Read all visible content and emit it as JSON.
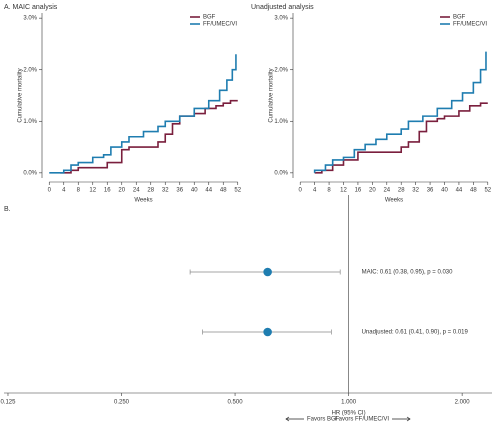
{
  "chart_data": [
    {
      "type": "line",
      "title": "A. MAIC analysis",
      "ylabel": "Cumulative mortality",
      "xlabel": "Weeks",
      "xlim": [
        -2,
        54
      ],
      "xticks": [
        0,
        4,
        8,
        12,
        16,
        20,
        24,
        28,
        32,
        36,
        40,
        44,
        48,
        52
      ],
      "ylim": [
        -0.1,
        3.1
      ],
      "yticks": [
        {
          "value": 0,
          "label": "0.0%"
        },
        {
          "value": 1,
          "label": "1.0%"
        },
        {
          "value": 2,
          "label": "2.0%"
        },
        {
          "value": 3,
          "label": "3.0%"
        }
      ],
      "legend": "upper right",
      "series": [
        {
          "name": "BGF",
          "color": "#7a1f3d",
          "x": [
            3,
            6,
            6,
            8,
            8,
            16,
            16,
            20,
            20,
            22,
            22,
            30,
            30,
            32,
            32,
            34,
            34,
            36,
            36,
            40,
            40,
            43,
            43,
            46,
            46,
            48,
            48,
            50,
            50,
            52
          ],
          "values": [
            0,
            0,
            0.05,
            0.05,
            0.1,
            0.1,
            0.2,
            0.2,
            0.45,
            0.45,
            0.5,
            0.5,
            0.6,
            0.6,
            0.75,
            0.75,
            0.95,
            0.95,
            1.1,
            1.1,
            1.15,
            1.15,
            1.25,
            1.25,
            1.3,
            1.3,
            1.35,
            1.35,
            1.4,
            1.4
          ]
        },
        {
          "name": "FF/UMEC/VI",
          "color": "#1f7db0",
          "x": [
            0,
            4,
            4,
            6,
            6,
            8,
            8,
            12,
            12,
            15,
            15,
            17,
            17,
            20,
            20,
            22,
            22,
            26,
            26,
            30,
            30,
            32,
            32,
            36,
            36,
            40,
            40,
            44,
            44,
            47,
            47,
            49,
            49,
            50.5,
            50.5,
            51.5,
            51.5
          ],
          "values": [
            0,
            0,
            0.05,
            0.05,
            0.15,
            0.15,
            0.2,
            0.2,
            0.3,
            0.3,
            0.35,
            0.35,
            0.5,
            0.5,
            0.6,
            0.6,
            0.7,
            0.7,
            0.8,
            0.8,
            0.9,
            0.9,
            1.0,
            1.0,
            1.1,
            1.1,
            1.25,
            1.25,
            1.4,
            1.4,
            1.6,
            1.6,
            1.8,
            1.8,
            2.0,
            2.0,
            2.3
          ]
        }
      ]
    },
    {
      "type": "line",
      "title": "Unadjusted analysis",
      "ylabel": "Cumulative mortality",
      "xlabel": "Weeks",
      "xlim": [
        -2,
        54
      ],
      "xticks": [
        0,
        4,
        8,
        12,
        16,
        20,
        24,
        28,
        32,
        36,
        40,
        44,
        48,
        52
      ],
      "ylim": [
        -0.1,
        3.1
      ],
      "yticks": [
        {
          "value": 0,
          "label": "0.0%"
        },
        {
          "value": 1,
          "label": "1.0%"
        },
        {
          "value": 2,
          "label": "2.0%"
        },
        {
          "value": 3,
          "label": "3.0%"
        }
      ],
      "legend": "upper right",
      "series": [
        {
          "name": "BGF",
          "color": "#7a1f3d",
          "x": [
            4,
            6,
            6,
            9,
            9,
            12,
            12,
            16,
            16,
            28,
            28,
            30,
            30,
            33,
            33,
            35,
            35,
            38,
            38,
            40,
            40,
            44,
            44,
            47,
            47,
            50,
            50,
            52
          ],
          "values": [
            0,
            0,
            0.05,
            0.05,
            0.15,
            0.15,
            0.25,
            0.25,
            0.4,
            0.4,
            0.5,
            0.5,
            0.6,
            0.6,
            0.8,
            0.8,
            1.0,
            1.0,
            1.05,
            1.05,
            1.1,
            1.1,
            1.2,
            1.2,
            1.3,
            1.3,
            1.35,
            1.35
          ]
        },
        {
          "name": "FF/UMEC/VI",
          "color": "#1f7db0",
          "x": [
            4,
            4,
            7,
            7,
            9,
            9,
            12,
            12,
            15,
            15,
            18,
            18,
            21,
            21,
            24,
            24,
            28,
            28,
            30,
            30,
            34,
            34,
            38,
            38,
            42,
            42,
            45,
            45,
            48,
            48,
            50,
            50,
            51.5,
            51.5
          ],
          "values": [
            0,
            0.05,
            0.05,
            0.15,
            0.15,
            0.25,
            0.25,
            0.3,
            0.3,
            0.45,
            0.45,
            0.55,
            0.55,
            0.65,
            0.65,
            0.75,
            0.75,
            0.85,
            0.85,
            1.0,
            1.0,
            1.1,
            1.1,
            1.25,
            1.25,
            1.4,
            1.4,
            1.55,
            1.55,
            1.75,
            1.75,
            2.0,
            2.0,
            2.35
          ]
        }
      ]
    },
    {
      "type": "forest",
      "title": "B.",
      "xlabel": "HR (95% CI)",
      "log_x": true,
      "xlim": [
        0.122,
        2.4
      ],
      "xticks": [
        0.125,
        {
          "value": 0.25,
          "label": "0.250"
        },
        {
          "value": 0.5,
          "label": "0.500"
        },
        {
          "value": 1,
          "label": "1.000"
        },
        {
          "value": 2,
          "label": "2.000"
        }
      ],
      "reference": 1,
      "labels": [
        "MAIC: 0.61 (0.38, 0.95), p = 0.030",
        "Unadjusted: 0.61 (0.41, 0.90), p = 0.019"
      ],
      "values": [
        0.61,
        0.61
      ],
      "lower": [
        0.38,
        0.41
      ],
      "upper": [
        0.95,
        0.9
      ],
      "color": "#1f7db0",
      "favors_left": "Favors BGF",
      "favors_right": "Favors FF/UMEC/VI"
    }
  ]
}
